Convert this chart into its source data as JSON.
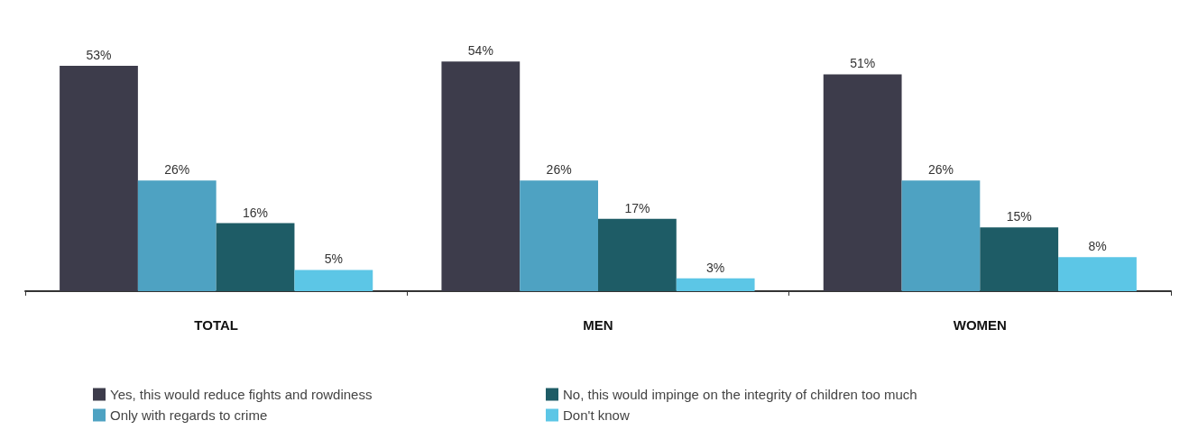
{
  "chart_data": {
    "type": "bar",
    "categories": [
      "TOTAL",
      "MEN",
      "WOMEN"
    ],
    "series": [
      {
        "name": "Yes, this would reduce fights and rowdiness",
        "color": "#3d3c4b",
        "values": [
          53,
          54,
          51
        ],
        "value_labels": [
          "53%",
          "54%",
          "51%"
        ]
      },
      {
        "name": "Only with regards to crime",
        "color": "#4ea2c2",
        "values": [
          26,
          26,
          26
        ],
        "value_labels": [
          "26%",
          "26%",
          "26%"
        ]
      },
      {
        "name": "No, this would impinge on the integrity of children too much",
        "color": "#1e5c66",
        "values": [
          16,
          17,
          15
        ],
        "value_labels": [
          "16%",
          "17%",
          "15%"
        ]
      },
      {
        "name": "Don't know",
        "color": "#5cc6e6",
        "values": [
          5,
          3,
          8
        ],
        "value_labels": [
          "5%",
          "3%",
          "8%"
        ]
      }
    ],
    "legend": "bottom",
    "grid": false,
    "tick_labels": "x"
  }
}
